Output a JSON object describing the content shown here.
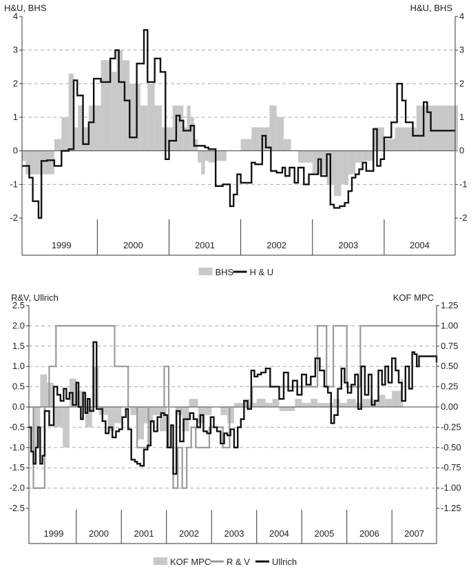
{
  "chart_data": [
    {
      "type": "line",
      "left_axis_label": "H&U, BHS",
      "right_axis_label": "H&U, BHS",
      "ylim": [
        -2,
        4
      ],
      "yticks": [
        "-2",
        "-1",
        "0",
        "1",
        "2",
        "3",
        "4"
      ],
      "right_yticks": [
        "-2",
        "-1",
        "0",
        "1",
        "2",
        "3",
        "4"
      ],
      "grid": true,
      "legend_position": "bottom-center",
      "years": [
        "1999",
        "2000",
        "2001",
        "2002",
        "2003",
        "2004"
      ],
      "x_range": [
        1998.95,
        2004.99
      ],
      "series": [
        {
          "name": "BHS",
          "kind": "bar",
          "color": "#c8c8c8",
          "x": [
            1998.95,
            1999.0,
            1999.4,
            1999.5,
            1999.6,
            1999.67,
            1999.73,
            1999.8,
            1999.88,
            2000.05,
            2000.2,
            2000.27,
            2000.35,
            2000.45,
            2000.6,
            2000.7,
            2000.8,
            2000.9,
            2001.05,
            2001.2,
            2001.25,
            2001.3,
            2001.35,
            2001.4,
            2001.45,
            2001.5,
            2001.55,
            2001.65,
            2001.8,
            2002.0,
            2002.15,
            2002.4,
            2002.5,
            2002.6,
            2002.7,
            2002.8,
            2003.0,
            2003.2,
            2003.3,
            2003.4,
            2003.5,
            2003.6,
            2003.7,
            2003.85,
            2004.0,
            2004.15,
            2004.45,
            2004.6,
            2004.99
          ],
          "y": [
            -0.3,
            -0.7,
            0.35,
            1.0,
            2.3,
            0.7,
            1.35,
            0.7,
            1.35,
            2.7,
            2.35,
            3.0,
            2.7,
            2.0,
            1.35,
            2.0,
            1.35,
            0.7,
            1.35,
            0.7,
            1.35,
            1.0,
            0.35,
            -0.35,
            -0.7,
            -0.3,
            -0.35,
            -0.3,
            0.0,
            0.35,
            0.7,
            1.35,
            1.0,
            0.35,
            0.0,
            -0.35,
            -0.7,
            -1.0,
            -1.35,
            -1.0,
            -0.7,
            -0.35,
            -0.3,
            0.7,
            0.35,
            0.7,
            1.35,
            1.35,
            1.35
          ]
        },
        {
          "name": "H & U",
          "kind": "step",
          "color": "#111111",
          "x": [
            1998.95,
            1999.05,
            1999.1,
            1999.18,
            1999.22,
            1999.3,
            1999.4,
            1999.5,
            1999.6,
            1999.67,
            1999.72,
            1999.8,
            1999.88,
            1999.95,
            2000.05,
            2000.18,
            2000.25,
            2000.3,
            2000.38,
            2000.45,
            2000.55,
            2000.65,
            2000.7,
            2000.8,
            2000.88,
            2000.95,
            2001.0,
            2001.05,
            2001.1,
            2001.15,
            2001.2,
            2001.3,
            2001.35,
            2001.45,
            2001.5,
            2001.55,
            2001.65,
            2001.75,
            2001.85,
            2001.9,
            2001.95,
            2002.0,
            2002.05,
            2002.1,
            2002.15,
            2002.2,
            2002.3,
            2002.35,
            2002.42,
            2002.5,
            2002.58,
            2002.62,
            2002.68,
            2002.75,
            2002.8,
            2002.88,
            2002.95,
            2003.02,
            2003.08,
            2003.12,
            2003.2,
            2003.25,
            2003.3,
            2003.38,
            2003.45,
            2003.5,
            2003.55,
            2003.6,
            2003.65,
            2003.7,
            2003.75,
            2003.8,
            2003.85,
            2003.9,
            2003.95,
            2004.0,
            2004.1,
            2004.18,
            2004.25,
            2004.3,
            2004.4,
            2004.5,
            2004.55,
            2004.6,
            2004.65,
            2004.7,
            2004.8,
            2004.88,
            2004.95,
            2004.99
          ],
          "y": [
            -0.45,
            -0.8,
            -1.5,
            -2.0,
            -0.3,
            -0.28,
            -0.45,
            0.0,
            0.05,
            2.1,
            1.65,
            0.2,
            0.85,
            2.15,
            2.05,
            2.75,
            3.0,
            2.05,
            1.5,
            0.4,
            2.6,
            3.6,
            2.05,
            2.75,
            2.35,
            -0.25,
            0.3,
            0.3,
            1.05,
            0.9,
            0.6,
            0.75,
            0.15,
            0.15,
            0.1,
            0.05,
            -1.05,
            -1.0,
            -1.65,
            -1.3,
            -0.7,
            -0.95,
            -0.95,
            -0.95,
            -0.35,
            -0.4,
            0.45,
            0.1,
            -0.6,
            -0.65,
            -0.5,
            -0.75,
            -0.5,
            -0.95,
            -0.5,
            -1.0,
            -0.7,
            -0.7,
            -0.25,
            -0.75,
            -0.1,
            -1.6,
            -1.7,
            -1.65,
            -1.55,
            -1.2,
            -0.8,
            -0.7,
            -0.55,
            -0.35,
            -0.6,
            -0.6,
            0.65,
            -0.45,
            -0.25,
            0.4,
            0.85,
            2.0,
            1.5,
            0.85,
            0.45,
            0.45,
            1.45,
            1.15,
            0.6,
            0.6,
            0.6,
            0.6,
            0.6,
            0.6
          ]
        }
      ]
    },
    {
      "type": "line",
      "left_axis_label": "R&V, Ullrich",
      "right_axis_label": "KOF MPC",
      "ylim": [
        -2.5,
        2.5
      ],
      "right_ylim": [
        -1.25,
        1.25
      ],
      "yticks": [
        "-2.5",
        "-2.0",
        "-1.5",
        "-1.0",
        "-0.5",
        "0.0",
        "0.5",
        "1.0",
        "1.5",
        "2.0",
        "2.5"
      ],
      "right_yticks": [
        "-1.25",
        "-1.00",
        "-0.75",
        "-0.50",
        "-0.25",
        "0.00",
        "0.25",
        "0.50",
        "0.75",
        "1.00",
        "1.25"
      ],
      "grid": true,
      "legend_position": "bottom-center",
      "years": [
        "1999",
        "2000",
        "2001",
        "2002",
        "2003",
        "2004",
        "2005",
        "2006",
        "2007"
      ],
      "x_range": [
        1998.95,
        2007.99
      ],
      "series": [
        {
          "name": "KOF MPC",
          "kind": "bar",
          "color": "#c8c8c8",
          "axis": "right",
          "x": [
            1999.05,
            1999.2,
            1999.35,
            1999.5,
            1999.7,
            1999.85,
            2000.0,
            2000.2,
            2000.35,
            2000.5,
            2000.7,
            2000.85,
            2001.0,
            2001.2,
            2001.35,
            2001.5,
            2001.7,
            2001.85,
            2002.0,
            2002.2,
            2002.35,
            2002.5,
            2002.7,
            2002.85,
            2003.0,
            2003.2,
            2003.35,
            2003.5,
            2003.7,
            2003.85,
            2004.0,
            2004.2,
            2004.35,
            2004.5,
            2004.7,
            2004.85,
            2005.0,
            2005.2,
            2005.35,
            2005.5,
            2005.7,
            2005.85,
            2006.0,
            2006.2,
            2006.35,
            2006.5,
            2006.7,
            2006.85,
            2007.0,
            2007.2
          ],
          "y": [
            -0.5,
            0.4,
            0.3,
            -0.25,
            -0.5,
            0.35,
            0.2,
            -0.25,
            0.5,
            -0.1,
            -0.3,
            -0.2,
            0.0,
            -0.1,
            -0.4,
            -0.2,
            -0.1,
            -0.3,
            0.0,
            -0.1,
            -0.3,
            0.1,
            -0.2,
            -0.1,
            0.0,
            -0.1,
            -0.2,
            0.05,
            0.1,
            0.05,
            0.1,
            0.05,
            0.1,
            -0.05,
            -0.05,
            0.1,
            0.05,
            0.1,
            0.05,
            0.05,
            0.1,
            0.05,
            0.1,
            0.05,
            0.1,
            0.1,
            0.15,
            0.1,
            0.2,
            0.35
          ]
        },
        {
          "name": "R & V",
          "kind": "step",
          "color": "#999999",
          "axis": "left",
          "x": [
            1998.95,
            1999.05,
            1999.2,
            1999.3,
            1999.4,
            1999.55,
            1999.65,
            1999.85,
            2000.0,
            2000.15,
            2000.3,
            2000.5,
            2000.65,
            2000.75,
            2000.85,
            2001.0,
            2001.15,
            2001.35,
            2001.5,
            2001.6,
            2001.75,
            2001.85,
            2001.95,
            2002.05,
            2002.15,
            2002.25,
            2002.35,
            2002.45,
            2002.55,
            2002.65,
            2002.8,
            2002.95,
            2003.1,
            2003.25,
            2003.4,
            2003.5,
            2003.6,
            2003.75,
            2003.9,
            2004.0,
            2004.2,
            2004.4,
            2004.6,
            2004.8,
            2005.0,
            2005.2,
            2005.35,
            2005.45,
            2005.55,
            2005.6,
            2005.7,
            2005.8,
            2006.0,
            2006.3,
            2006.6,
            2006.9,
            2007.2,
            2007.5,
            2007.99
          ],
          "y": [
            0.0,
            -2.0,
            -2.0,
            0.0,
            1.0,
            2.0,
            2.0,
            2.0,
            2.0,
            2.0,
            2.0,
            2.0,
            2.0,
            2.0,
            1.0,
            1.0,
            0.0,
            -1.0,
            -1.0,
            0.0,
            0.0,
            0.0,
            1.0,
            -1.0,
            -2.0,
            -1.0,
            -2.0,
            -1.0,
            -0.5,
            -1.0,
            -1.0,
            -0.5,
            -0.5,
            -1.0,
            0.0,
            0.0,
            0.0,
            0.0,
            0.5,
            0.5,
            0.5,
            0.5,
            0.5,
            0.5,
            0.5,
            0.5,
            2.0,
            2.0,
            0.5,
            0.5,
            2.0,
            2.0,
            0.5,
            2.0,
            2.0,
            2.0,
            2.0,
            2.0,
            2.0
          ]
        },
        {
          "name": "Ullrich",
          "kind": "step",
          "color": "#111111",
          "axis": "left",
          "x": [
            1998.95,
            1999.0,
            1999.05,
            1999.1,
            1999.15,
            1999.2,
            1999.25,
            1999.3,
            1999.4,
            1999.5,
            1999.58,
            1999.65,
            1999.72,
            1999.78,
            1999.85,
            1999.92,
            2000.0,
            2000.05,
            2000.1,
            2000.15,
            2000.2,
            2000.25,
            2000.3,
            2000.38,
            2000.45,
            2000.52,
            2000.58,
            2000.65,
            2000.72,
            2000.8,
            2000.88,
            2000.95,
            2001.02,
            2001.1,
            2001.15,
            2001.22,
            2001.3,
            2001.35,
            2001.42,
            2001.5,
            2001.58,
            2001.65,
            2001.72,
            2001.8,
            2001.88,
            2001.95,
            2002.02,
            2002.1,
            2002.15,
            2002.22,
            2002.3,
            2002.38,
            2002.45,
            2002.52,
            2002.6,
            2002.68,
            2002.75,
            2002.82,
            2002.9,
            2002.98,
            2003.05,
            2003.12,
            2003.2,
            2003.28,
            2003.35,
            2003.42,
            2003.5,
            2003.58,
            2003.65,
            2003.72,
            2003.8,
            2003.88,
            2003.95,
            2004.02,
            2004.1,
            2004.2,
            2004.3,
            2004.4,
            2004.5,
            2004.6,
            2004.7,
            2004.8,
            2004.9,
            2005.0,
            2005.1,
            2005.2,
            2005.3,
            2005.4,
            2005.5,
            2005.58,
            2005.65,
            2005.72,
            2005.8,
            2005.88,
            2005.95,
            2006.02,
            2006.1,
            2006.18,
            2006.25,
            2006.32,
            2006.4,
            2006.48,
            2006.55,
            2006.62,
            2006.7,
            2006.78,
            2006.85,
            2006.92,
            2007.0,
            2007.08,
            2007.15,
            2007.22,
            2007.3,
            2007.38,
            2007.45,
            2007.5,
            2007.55,
            2007.6,
            2007.99
          ],
          "y": [
            -0.5,
            -1.1,
            -1.4,
            -1.0,
            -0.5,
            -1.4,
            -1.2,
            -0.1,
            -0.45,
            0.5,
            0.3,
            0.15,
            0.45,
            0.2,
            0.35,
            0.05,
            0.6,
            0.0,
            -0.3,
            0.35,
            -0.15,
            0.2,
            -0.1,
            1.6,
            -0.05,
            -0.05,
            -0.35,
            -0.65,
            -0.5,
            -0.75,
            -0.6,
            -0.55,
            -0.25,
            -0.05,
            -0.55,
            -1.3,
            -1.35,
            -1.4,
            -1.45,
            -1.05,
            -0.95,
            -0.35,
            -0.6,
            -0.25,
            -0.15,
            -0.2,
            -1.0,
            -0.45,
            -1.65,
            -0.1,
            -0.85,
            -0.3,
            -0.3,
            -0.15,
            -0.3,
            -0.5,
            -0.2,
            -0.6,
            -0.65,
            -0.25,
            -0.5,
            -0.6,
            -0.9,
            -0.65,
            -0.7,
            -0.55,
            -1.0,
            -0.5,
            -0.3,
            0.15,
            -0.05,
            0.9,
            0.75,
            0.8,
            0.85,
            0.95,
            0.5,
            0.5,
            0.2,
            0.85,
            0.4,
            0.65,
            0.3,
            0.8,
            0.55,
            0.75,
            1.2,
            0.9,
            0.5,
            0.35,
            -0.4,
            -0.2,
            0.45,
            0.95,
            0.6,
            0.35,
            0.55,
            0.8,
            -0.05,
            1.0,
            0.3,
            0.8,
            0.05,
            0.15,
            0.9,
            0.55,
            1.0,
            0.6,
            1.2,
            0.9,
            0.6,
            0.15,
            1.0,
            0.45,
            1.35,
            1.3,
            1.0,
            1.25,
            1.1
          ]
        }
      ]
    }
  ]
}
